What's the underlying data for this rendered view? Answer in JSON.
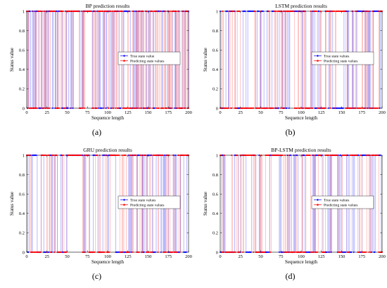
{
  "chart_data": [
    {
      "type": "line",
      "panel_label": "(a)",
      "title": "BP prediction results",
      "xlabel": "Sequence length",
      "ylabel": "Status value",
      "xlim": [
        0,
        200
      ],
      "ylim": [
        0,
        1
      ],
      "xticks": [
        0,
        25,
        50,
        75,
        100,
        125,
        150,
        175,
        200
      ],
      "yticks": [
        0,
        0.2,
        0.4,
        0.6,
        0.8,
        1
      ],
      "grid": false,
      "legend": "center-right",
      "series": [
        {
          "name": "True state value",
          "color": "#0000ff",
          "marker": "diamond",
          "seed": 11,
          "switch_prob": 0.45
        },
        {
          "name": "Predicting state values",
          "color": "#ff0000",
          "marker": "circle",
          "seed": 12,
          "switch_prob": 0.45
        }
      ],
      "gaps": [
        [
          58,
          64
        ],
        [
          72,
          80
        ]
      ]
    },
    {
      "type": "line",
      "panel_label": "(b)",
      "title": "LSTM prediction results",
      "xlabel": "Sequence length",
      "ylabel": "Status value",
      "xlim": [
        0,
        200
      ],
      "ylim": [
        0,
        1
      ],
      "xticks": [
        0,
        25,
        50,
        75,
        100,
        125,
        150,
        175,
        200
      ],
      "yticks": [
        0,
        0.2,
        0.4,
        0.6,
        0.8,
        1
      ],
      "grid": false,
      "legend": "center-right",
      "series": [
        {
          "name": "True state values",
          "color": "#0000ff",
          "marker": "diamond",
          "seed": 21,
          "switch_prob": 0.25
        },
        {
          "name": "Predicting state values",
          "color": "#ff0000",
          "marker": "circle",
          "seed": 22,
          "switch_prob": 0.25
        }
      ],
      "gaps": []
    },
    {
      "type": "line",
      "panel_label": "(c)",
      "title": "GRU prediction results",
      "xlabel": "Sequence length",
      "ylabel": "Status value",
      "xlim": [
        0,
        200
      ],
      "ylim": [
        0,
        1
      ],
      "xticks": [
        0,
        25,
        50,
        75,
        100,
        125,
        150,
        175,
        200
      ],
      "yticks": [
        0,
        0.2,
        0.4,
        0.6,
        0.8,
        1
      ],
      "grid": false,
      "legend": "center-right",
      "series": [
        {
          "name": "True state values",
          "color": "#0000ff",
          "marker": "diamond",
          "seed": 31,
          "switch_prob": 0.28
        },
        {
          "name": "Predicting state values",
          "color": "#ff0000",
          "marker": "circle",
          "seed": 32,
          "switch_prob": 0.28
        }
      ],
      "gaps": [
        [
          50,
          60
        ]
      ]
    },
    {
      "type": "line",
      "panel_label": "(d)",
      "title": "BP-LSTM prediction results",
      "xlabel": "Sequence length",
      "ylabel": "Status value",
      "xlim": [
        0,
        200
      ],
      "ylim": [
        0,
        1
      ],
      "xticks": [
        0,
        25,
        50,
        75,
        100,
        125,
        150,
        175,
        200
      ],
      "yticks": [
        0,
        0.2,
        0.4,
        0.6,
        0.8,
        1
      ],
      "grid": false,
      "legend": "center-right",
      "series": [
        {
          "name": "True state values",
          "color": "#0000ff",
          "marker": "diamond",
          "seed": 41,
          "switch_prob": 0.28
        },
        {
          "name": "Predicting state values",
          "color": "#ff0000",
          "marker": "circle",
          "seed": 42,
          "switch_prob": 0.28
        }
      ],
      "gaps": [
        [
          64,
          72
        ]
      ]
    }
  ]
}
